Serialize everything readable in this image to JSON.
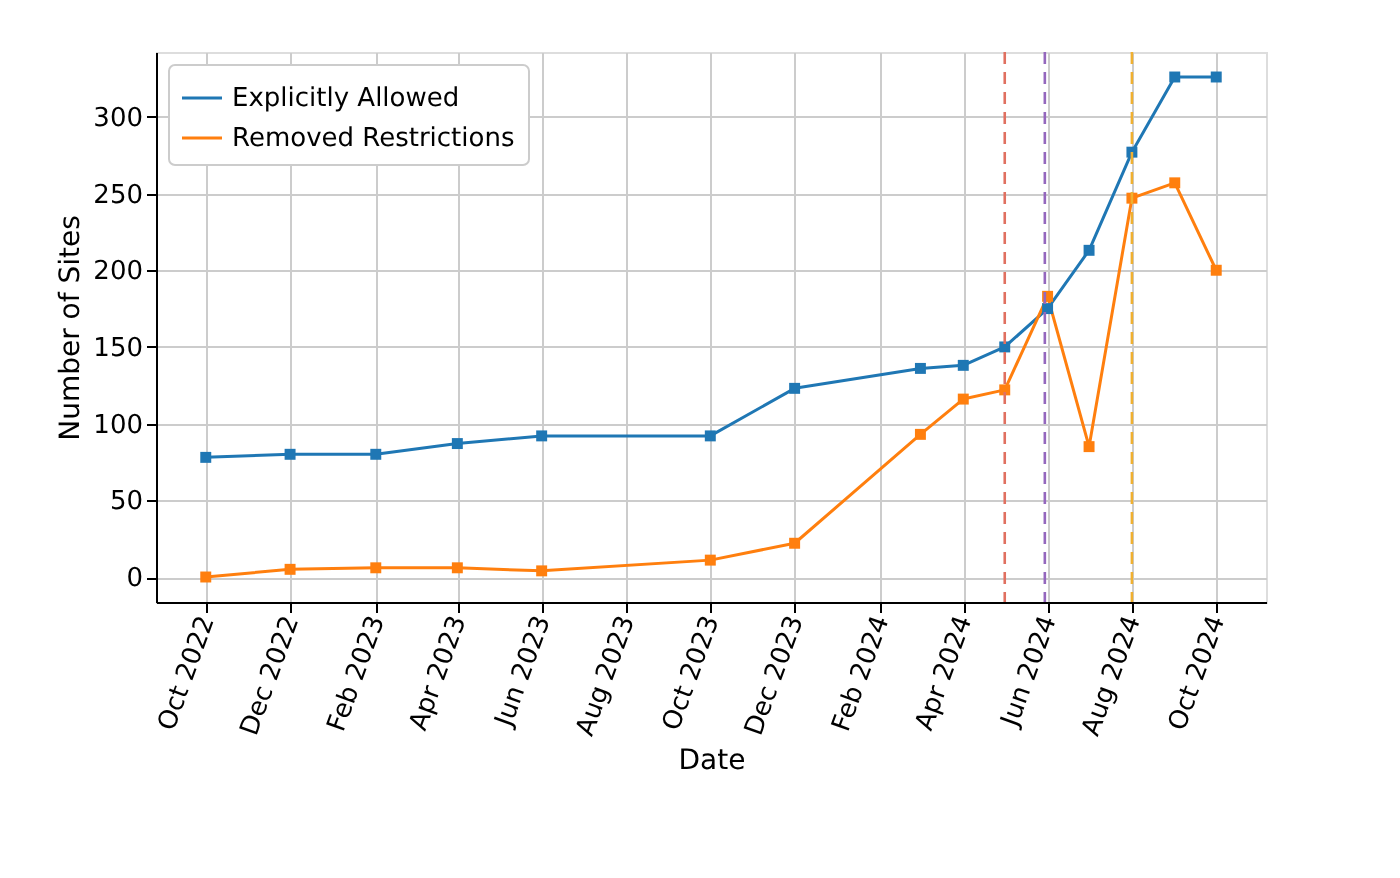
{
  "chart_data": {
    "type": "line",
    "xlabel": "Date",
    "ylabel": "Number of Sites",
    "x": [
      "2022-10-01",
      "2022-12-01",
      "2023-02-01",
      "2023-04-01",
      "2023-06-01",
      "2023-10-01",
      "2023-12-01",
      "2024-03-01",
      "2024-04-01",
      "2024-05-01",
      "2024-06-01",
      "2024-07-01",
      "2024-08-01",
      "2024-09-01",
      "2024-10-01"
    ],
    "series": [
      {
        "name": "Explicitly Allowed",
        "color": "#1f77b4",
        "values": [
          78,
          80,
          80,
          87,
          92,
          92,
          123,
          136,
          138,
          150,
          175,
          213,
          277,
          326,
          326
        ]
      },
      {
        "name": "Removed Restrictions",
        "color": "#ff7f0e",
        "values": [
          0,
          5,
          6,
          6,
          4,
          11,
          22,
          93,
          116,
          122,
          183,
          85,
          247,
          257,
          200
        ]
      }
    ],
    "ref_lines": [
      {
        "axis": "x",
        "value": "2024-05-01",
        "color": "#e07060",
        "line_style": "dashed"
      },
      {
        "axis": "x",
        "value": "2024-05-30",
        "color": "#9467bd",
        "line_style": "dashed"
      },
      {
        "axis": "x",
        "value": "2024-08-01",
        "color": "#f0b030",
        "line_style": "dashed"
      }
    ],
    "xlim": [
      "2022-08-26",
      "2024-11-06"
    ],
    "xticks": [
      {
        "value": "2022-10-01",
        "label": "Oct 2022"
      },
      {
        "value": "2022-12-01",
        "label": "Dec 2022"
      },
      {
        "value": "2023-02-01",
        "label": "Feb 2023"
      },
      {
        "value": "2023-04-01",
        "label": "Apr 2023"
      },
      {
        "value": "2023-06-01",
        "label": "Jun 2023"
      },
      {
        "value": "2023-08-01",
        "label": "Aug 2023"
      },
      {
        "value": "2023-10-01",
        "label": "Oct 2023"
      },
      {
        "value": "2023-12-01",
        "label": "Dec 2023"
      },
      {
        "value": "2024-02-01",
        "label": "Feb 2024"
      },
      {
        "value": "2024-04-01",
        "label": "Apr 2024"
      },
      {
        "value": "2024-06-01",
        "label": "Jun 2024"
      },
      {
        "value": "2024-08-01",
        "label": "Aug 2024"
      },
      {
        "value": "2024-10-01",
        "label": "Oct 2024"
      }
    ],
    "ylim": [
      -16.3,
      342.3
    ],
    "yticks": [
      0,
      50,
      100,
      150,
      200,
      250,
      300
    ],
    "grid": true,
    "legend": "top left",
    "marker": "square",
    "line_style": "solid"
  }
}
